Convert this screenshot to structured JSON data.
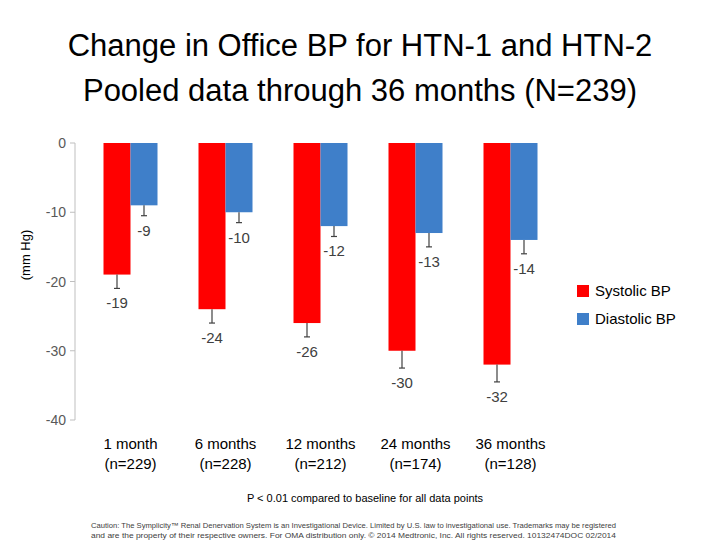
{
  "chart_data": {
    "type": "bar",
    "title": [
      "Change in Office BP for HTN-1 and HTN-2",
      "Pooled data through 36 months (N=239)"
    ],
    "y_label": "(mm Hg)",
    "categories": [
      "1 month\n(n=229)",
      "6 months\n(n=228)",
      "12 months\n(n=212)",
      "24 months\n(n=174)",
      "36 months\n(n=128)"
    ],
    "series": [
      {
        "name": "Systolic BP",
        "color": "#ff0000",
        "values": [
          -19,
          -24,
          -26,
          -30,
          -32
        ],
        "errors": [
          2,
          2,
          2,
          2.5,
          2.5
        ]
      },
      {
        "name": "Diastolic BP",
        "color": "#3f7fc9",
        "values": [
          -9,
          -10,
          -12,
          -13,
          -14
        ],
        "errors": [
          1.5,
          1.5,
          1.5,
          2,
          2
        ]
      }
    ],
    "ylim": [
      -40,
      0
    ],
    "yticks": [
      0,
      -10,
      -20,
      -30,
      -40
    ],
    "grid": false,
    "legend": "right",
    "data_labels": true,
    "footnote": "P < 0.01 compared to baseline for all data points",
    "caution": [
      "Caution: The Symplicity™ Renal Denervation System is an Investigational Device. Limited by U.S. law to investigational use. Trademarks may be registered",
      "and are the property of their respective owners. For OMA distribution only. © 2014 Medtronic, Inc. All rights reserved. 10132474DOC 02/2014"
    ]
  }
}
